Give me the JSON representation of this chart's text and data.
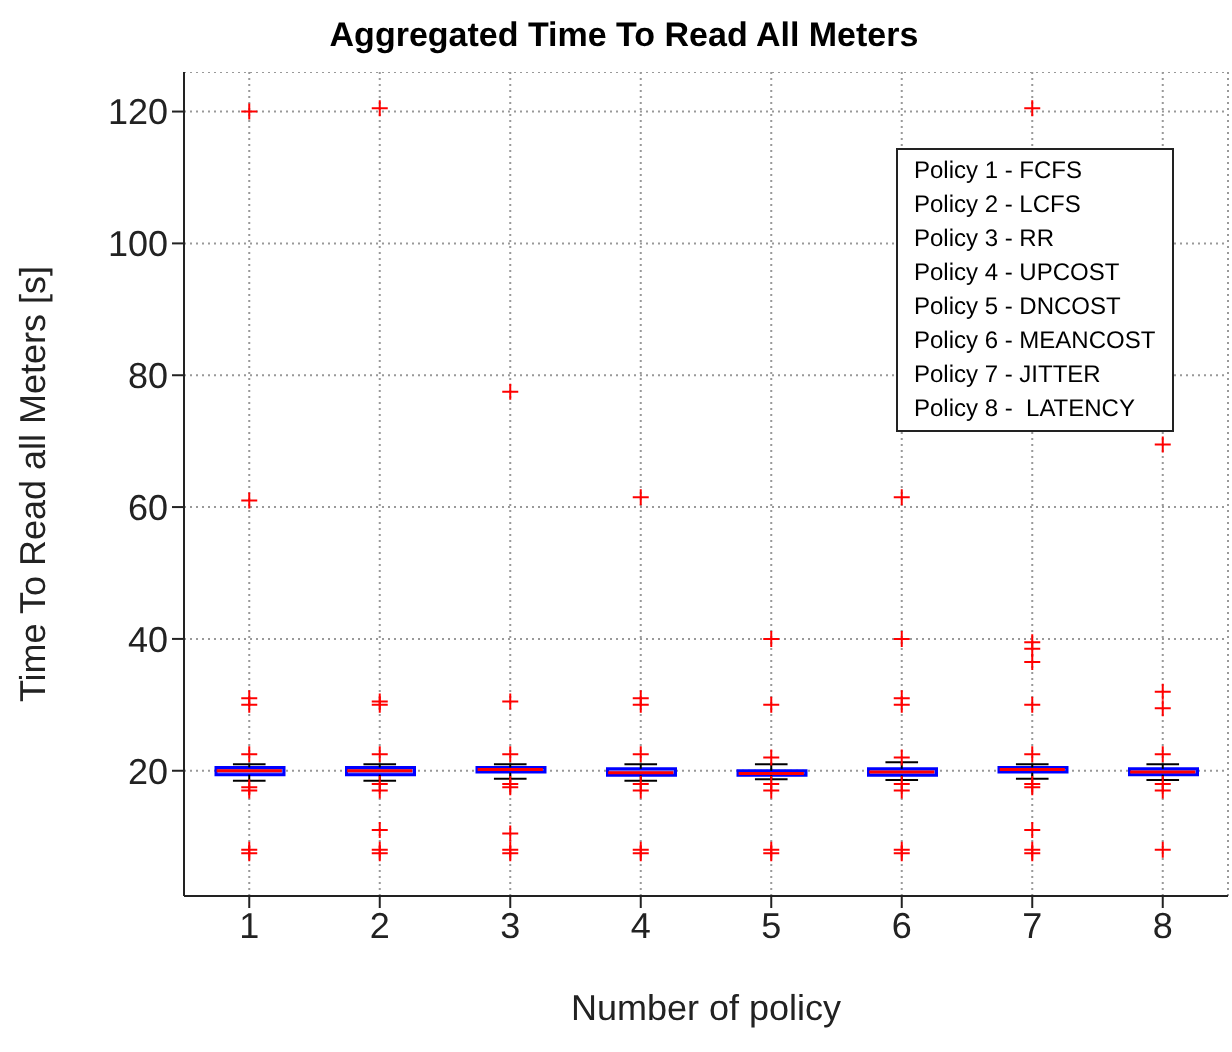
{
  "chart_data": {
    "type": "box",
    "title": "Aggregated Time To Read All Meters",
    "xlabel": "Number of policy",
    "ylabel": "Time To Read all Meters [s]",
    "categories": [
      "1",
      "2",
      "3",
      "4",
      "5",
      "6",
      "7",
      "8"
    ],
    "ylim": [
      1,
      126
    ],
    "yticks": [
      20,
      40,
      60,
      80,
      100,
      120
    ],
    "grid": true,
    "color": "#0000ff",
    "boxes": [
      {
        "low": 18.5,
        "q1": 19.4,
        "median": 20,
        "q3": 20.5,
        "high": 21,
        "outliers": [
          7.5,
          8,
          17,
          17.5,
          22.5,
          30,
          31,
          61,
          120
        ]
      },
      {
        "low": 18.5,
        "q1": 19.4,
        "median": 20,
        "q3": 20.5,
        "high": 21,
        "outliers": [
          7.5,
          8,
          11,
          17,
          18,
          22.5,
          30,
          30.5,
          120.5
        ]
      },
      {
        "low": 18.8,
        "q1": 19.8,
        "median": 20.2,
        "q3": 20.5,
        "high": 21,
        "outliers": [
          7.5,
          8,
          10.5,
          17.5,
          18,
          22.5,
          30.5,
          77.5
        ]
      },
      {
        "low": 18.5,
        "q1": 19.3,
        "median": 19.7,
        "q3": 20.3,
        "high": 21,
        "outliers": [
          7.5,
          8,
          17,
          18,
          22.5,
          30,
          31,
          61.5
        ]
      },
      {
        "low": 18.7,
        "q1": 19.3,
        "median": 19.6,
        "q3": 20,
        "high": 21,
        "outliers": [
          7.5,
          8,
          17,
          18,
          22,
          30,
          40
        ]
      },
      {
        "low": 18.6,
        "q1": 19.3,
        "median": 19.8,
        "q3": 20.3,
        "high": 21.3,
        "outliers": [
          7.5,
          8,
          17,
          18,
          22,
          30,
          31,
          40,
          61.5
        ]
      },
      {
        "low": 18.8,
        "q1": 19.8,
        "median": 20.2,
        "q3": 20.5,
        "high": 21,
        "outliers": [
          7.5,
          8,
          11,
          17.5,
          18,
          22.5,
          30,
          36.5,
          38.5,
          39.5,
          120.5
        ]
      },
      {
        "low": 18.6,
        "q1": 19.4,
        "median": 19.8,
        "q3": 20.3,
        "high": 21,
        "outliers": [
          8,
          17,
          18,
          22.5,
          29.5,
          32,
          69.5
        ]
      }
    ],
    "annotations": [
      "Policy 1 - FCFS",
      "Policy 2 - LCFS",
      "Policy 3 - RR",
      "Policy 4 - UPCOST",
      "Policy 5 - DNCOST",
      "Policy 6 - MEANCOST",
      "Policy 7 - JITTER",
      "Policy 8 -  LATENCY"
    ]
  }
}
